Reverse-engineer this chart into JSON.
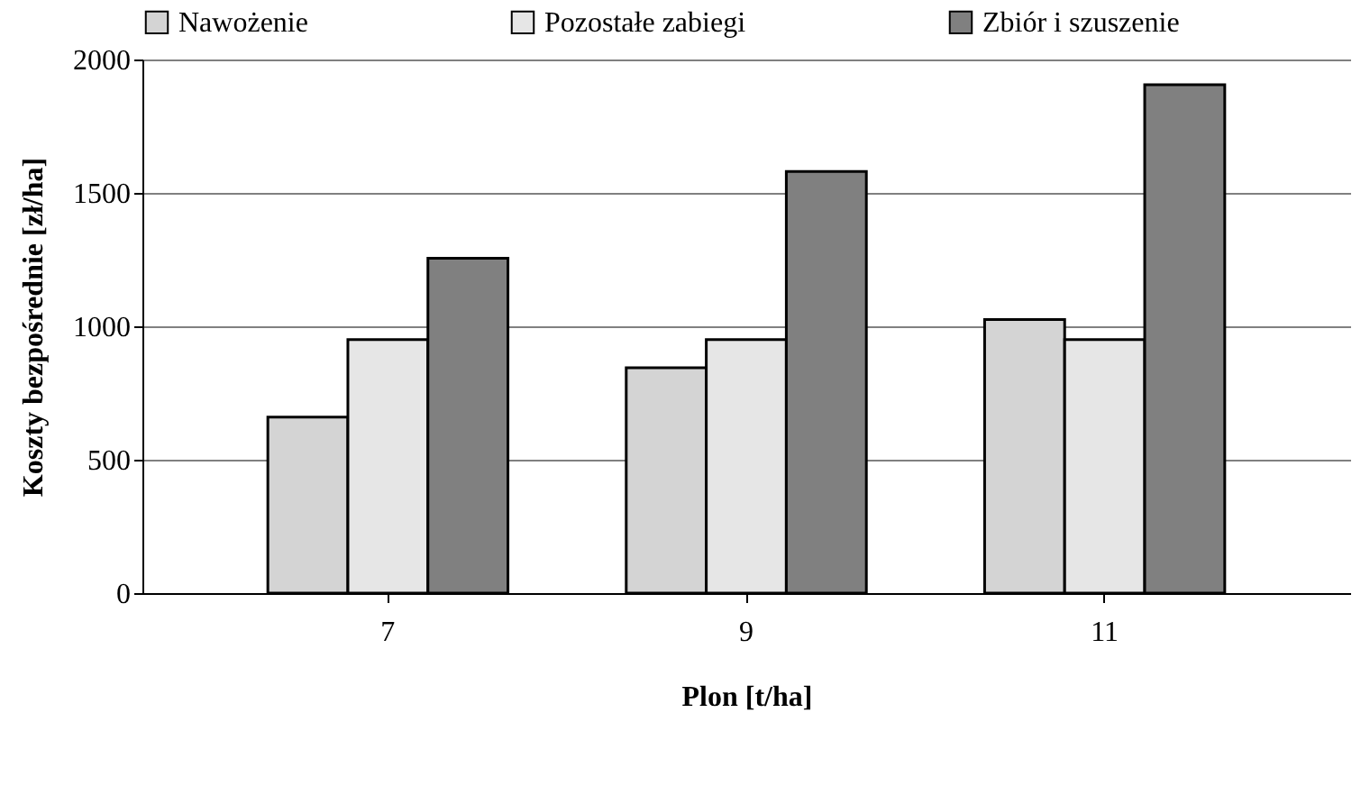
{
  "chart_data": {
    "type": "bar",
    "xlabel": "Plon [t/ha]",
    "ylabel": "Koszty bezpośrednie [zł/ha]",
    "categories": [
      "7",
      "9",
      "11"
    ],
    "series": [
      {
        "name": "Nawożenie",
        "color": "#d4d4d4",
        "values": [
          660,
          845,
          1025
        ]
      },
      {
        "name": "Pozostałe zabiegi",
        "color": "#e6e6e6",
        "values": [
          950,
          950,
          950
        ]
      },
      {
        "name": "Zbiór i szuszenie",
        "color": "#808080",
        "values": [
          1255,
          1580,
          1905
        ]
      }
    ],
    "ylim": [
      0,
      2000
    ],
    "yticks": [
      0,
      500,
      1000,
      1500,
      2000
    ],
    "grid": "y",
    "legend": "top"
  }
}
